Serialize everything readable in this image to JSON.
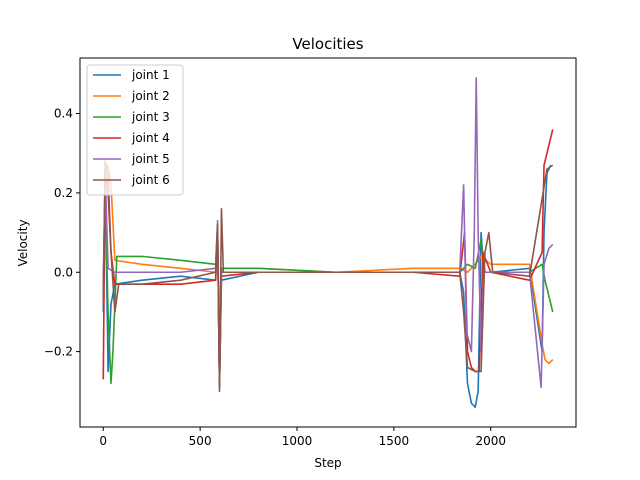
{
  "chart_data": {
    "type": "line",
    "title": "Velocities",
    "xlabel": "Step",
    "ylabel": "Velocity",
    "xlim": [
      -120,
      2440
    ],
    "ylim": [
      -0.39,
      0.54
    ],
    "xticks": [
      {
        "value": 0,
        "label": "0"
      },
      {
        "value": 500,
        "label": "500"
      },
      {
        "value": 1000,
        "label": "1000"
      },
      {
        "value": 1500,
        "label": "1500"
      },
      {
        "value": 2000,
        "label": "2000"
      }
    ],
    "yticks": [
      {
        "value": -0.2,
        "label": "−0.2"
      },
      {
        "value": 0.0,
        "label": "0.0"
      },
      {
        "value": 0.2,
        "label": "0.2"
      },
      {
        "value": 0.4,
        "label": "0.4"
      }
    ],
    "grid": false,
    "legend_position": "top-left",
    "series": [
      {
        "name": "joint 1",
        "color": "#1f77b4",
        "points": [
          [
            0,
            -0.1
          ],
          [
            10,
            0.25
          ],
          [
            25,
            -0.25
          ],
          [
            40,
            -0.08
          ],
          [
            60,
            -0.03
          ],
          [
            200,
            -0.02
          ],
          [
            400,
            -0.01
          ],
          [
            580,
            -0.02
          ],
          [
            590,
            0.12
          ],
          [
            600,
            -0.29
          ],
          [
            610,
            -0.02
          ],
          [
            800,
            0.0
          ],
          [
            1200,
            0.0
          ],
          [
            1600,
            0.0
          ],
          [
            1840,
            0.0
          ],
          [
            1860,
            -0.05
          ],
          [
            1880,
            -0.28
          ],
          [
            1900,
            -0.33
          ],
          [
            1920,
            -0.34
          ],
          [
            1935,
            -0.3
          ],
          [
            1950,
            0.1
          ],
          [
            1965,
            0.0
          ],
          [
            2000,
            0.0
          ],
          [
            2200,
            0.01
          ],
          [
            2265,
            -0.2
          ],
          [
            2275,
            0.1
          ],
          [
            2290,
            0.25
          ],
          [
            2310,
            0.27
          ]
        ]
      },
      {
        "name": "joint 2",
        "color": "#ff7f0e",
        "points": [
          [
            0,
            -0.05
          ],
          [
            10,
            0.26
          ],
          [
            25,
            0.27
          ],
          [
            40,
            0.22
          ],
          [
            60,
            0.03
          ],
          [
            200,
            0.02
          ],
          [
            400,
            0.01
          ],
          [
            580,
            0.0
          ],
          [
            590,
            0.11
          ],
          [
            600,
            -0.28
          ],
          [
            610,
            0.01
          ],
          [
            800,
            0.01
          ],
          [
            1200,
            0.0
          ],
          [
            1600,
            0.01
          ],
          [
            1840,
            0.01
          ],
          [
            1880,
            0.0
          ],
          [
            1920,
            0.02
          ],
          [
            1950,
            0.04
          ],
          [
            2000,
            0.02
          ],
          [
            2200,
            0.02
          ],
          [
            2265,
            -0.18
          ],
          [
            2280,
            -0.22
          ],
          [
            2300,
            -0.23
          ],
          [
            2320,
            -0.22
          ]
        ]
      },
      {
        "name": "joint 3",
        "color": "#2ca02c",
        "points": [
          [
            0,
            -0.05
          ],
          [
            10,
            0.2
          ],
          [
            25,
            -0.1
          ],
          [
            40,
            -0.28
          ],
          [
            50,
            -0.2
          ],
          [
            70,
            0.04
          ],
          [
            200,
            0.04
          ],
          [
            400,
            0.03
          ],
          [
            580,
            0.02
          ],
          [
            590,
            0.12
          ],
          [
            600,
            -0.29
          ],
          [
            610,
            0.01
          ],
          [
            800,
            0.01
          ],
          [
            1200,
            0.0
          ],
          [
            1600,
            0.0
          ],
          [
            1840,
            0.0
          ],
          [
            1880,
            0.02
          ],
          [
            1920,
            0.01
          ],
          [
            1950,
            0.08
          ],
          [
            1970,
            0.0
          ],
          [
            2200,
            0.0
          ],
          [
            2265,
            0.02
          ],
          [
            2280,
            -0.02
          ],
          [
            2300,
            -0.06
          ],
          [
            2320,
            -0.1
          ]
        ]
      },
      {
        "name": "joint 4",
        "color": "#d62728",
        "points": [
          [
            0,
            -0.27
          ],
          [
            10,
            0.26
          ],
          [
            25,
            0.2
          ],
          [
            40,
            0.05
          ],
          [
            60,
            -0.03
          ],
          [
            200,
            -0.03
          ],
          [
            400,
            -0.03
          ],
          [
            580,
            -0.02
          ],
          [
            590,
            0.11
          ],
          [
            600,
            -0.28
          ],
          [
            610,
            -0.01
          ],
          [
            800,
            0.0
          ],
          [
            1200,
            0.0
          ],
          [
            1600,
            0.0
          ],
          [
            1840,
            -0.01
          ],
          [
            1865,
            0.1
          ],
          [
            1880,
            -0.2
          ],
          [
            1900,
            -0.24
          ],
          [
            1920,
            -0.25
          ],
          [
            1940,
            -0.25
          ],
          [
            1960,
            0.05
          ],
          [
            2000,
            0.0
          ],
          [
            2200,
            -0.02
          ],
          [
            2265,
            0.05
          ],
          [
            2275,
            0.27
          ],
          [
            2300,
            0.32
          ],
          [
            2320,
            0.36
          ]
        ]
      },
      {
        "name": "joint 5",
        "color": "#9467bd",
        "points": [
          [
            0,
            -0.03
          ],
          [
            10,
            0.25
          ],
          [
            25,
            0.01
          ],
          [
            60,
            0.0
          ],
          [
            200,
            0.0
          ],
          [
            400,
            0.0
          ],
          [
            580,
            0.01
          ],
          [
            590,
            0.13
          ],
          [
            600,
            -0.29
          ],
          [
            610,
            0.0
          ],
          [
            800,
            0.0
          ],
          [
            1200,
            0.0
          ],
          [
            1600,
            0.0
          ],
          [
            1840,
            0.0
          ],
          [
            1860,
            0.22
          ],
          [
            1875,
            -0.15
          ],
          [
            1900,
            -0.2
          ],
          [
            1915,
            0.1
          ],
          [
            1925,
            0.49
          ],
          [
            1935,
            0.1
          ],
          [
            1950,
            -0.2
          ],
          [
            1965,
            0.0
          ],
          [
            2000,
            0.0
          ],
          [
            2200,
            0.0
          ],
          [
            2260,
            -0.29
          ],
          [
            2275,
            0.02
          ],
          [
            2300,
            0.06
          ],
          [
            2320,
            0.07
          ]
        ]
      },
      {
        "name": "joint 6",
        "color": "#8c564b",
        "points": [
          [
            0,
            -0.08
          ],
          [
            10,
            0.28
          ],
          [
            25,
            0.25
          ],
          [
            40,
            0.05
          ],
          [
            60,
            -0.1
          ],
          [
            80,
            -0.03
          ],
          [
            200,
            -0.03
          ],
          [
            400,
            -0.02
          ],
          [
            580,
            0.0
          ],
          [
            590,
            0.12
          ],
          [
            600,
            -0.3
          ],
          [
            610,
            0.16
          ],
          [
            620,
            0.0
          ],
          [
            800,
            0.0
          ],
          [
            1200,
            0.0
          ],
          [
            1600,
            0.0
          ],
          [
            1840,
            0.0
          ],
          [
            1860,
            -0.1
          ],
          [
            1880,
            -0.24
          ],
          [
            1920,
            -0.25
          ],
          [
            1950,
            -0.25
          ],
          [
            1970,
            0.05
          ],
          [
            1990,
            0.1
          ],
          [
            2010,
            0.0
          ],
          [
            2200,
            -0.01
          ],
          [
            2270,
            0.2
          ],
          [
            2290,
            0.26
          ],
          [
            2320,
            0.27
          ]
        ]
      }
    ]
  }
}
